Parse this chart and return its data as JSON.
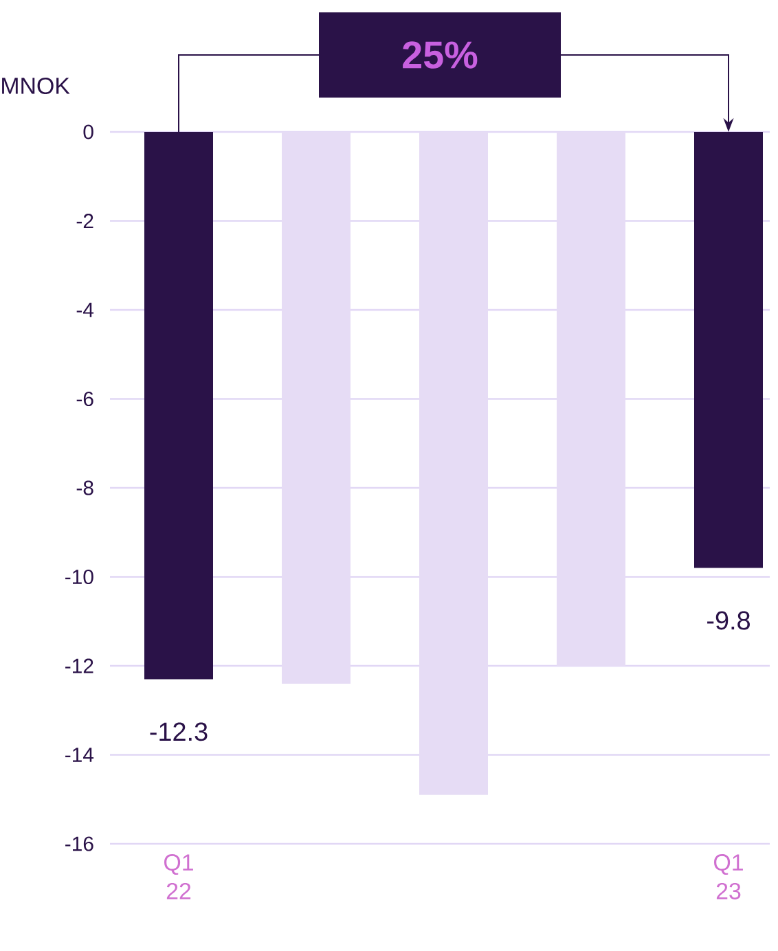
{
  "chart_data": {
    "type": "bar",
    "ylabel": "MNOK",
    "categories": [
      "Q1 22",
      null,
      null,
      null,
      "Q1 23"
    ],
    "values": [
      -12.3,
      -12.4,
      -14.9,
      -12.0,
      -9.8
    ],
    "colors": [
      "#2a1248",
      "#e6dcf5",
      "#e6dcf5",
      "#e6dcf5",
      "#2a1248"
    ],
    "value_labels": [
      "-12.3",
      null,
      null,
      null,
      "-9.8"
    ],
    "ylim": [
      -16,
      0
    ],
    "yticks": [
      0,
      -2,
      -4,
      -6,
      -8,
      -10,
      -12,
      -14,
      -16
    ],
    "grid": "y",
    "annotations": [
      "25%"
    ]
  }
}
